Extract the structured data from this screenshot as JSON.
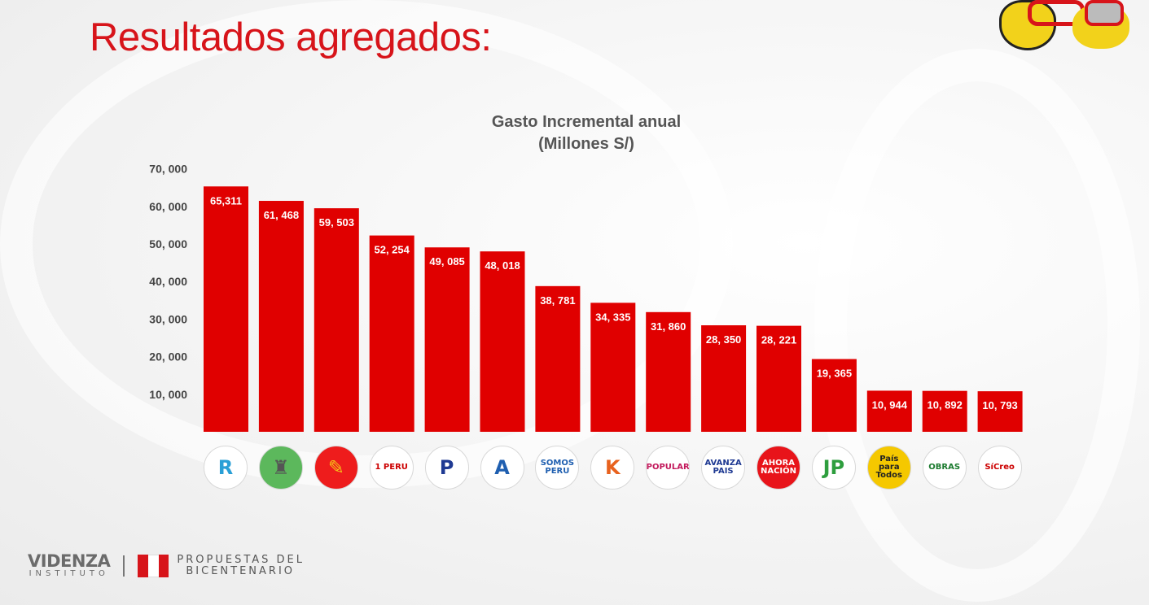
{
  "slide": {
    "title": "Resultados agregados:"
  },
  "chart_data": {
    "type": "bar",
    "title": "Gasto Incremental anual",
    "subtitle": "(Millones S/)",
    "categories": [
      "Renovación Popular",
      "Partido (escoba)",
      "Partido (lápiz)",
      "Perú Primero",
      "Podemos",
      "Alianza para el Progreso",
      "Somos Perú",
      "Fuerza Popular",
      "Cooperación Popular",
      "Avanza País",
      "Ahora Nación",
      "Juntos por el Perú",
      "País para Todos",
      "Obras",
      "Sí Creo"
    ],
    "values": [
      65311,
      61468,
      59503,
      52254,
      49085,
      48018,
      38781,
      34335,
      31860,
      28350,
      28221,
      19365,
      10944,
      10892,
      10793
    ],
    "data_labels": [
      "65,311",
      "61, 468",
      "59, 503",
      "52, 254",
      "49, 085",
      "48, 018",
      "38, 781",
      "34, 335",
      "31, 860",
      "28, 350",
      "28, 221",
      "19, 365",
      "10, 944",
      "10, 892",
      "10, 793"
    ],
    "yticks": [
      10000,
      20000,
      30000,
      40000,
      50000,
      60000,
      70000
    ],
    "ytick_labels": [
      "10, 000",
      "20, 000",
      "30, 000",
      "40, 000",
      "50, 000",
      "60, 000",
      "70, 000"
    ],
    "ylim": [
      0,
      70000
    ],
    "grid": false,
    "bar_color": "#e00000"
  },
  "logos": [
    {
      "text": "R",
      "bg": "#fff",
      "color": "#2a9fd6"
    },
    {
      "text": "♜",
      "bg": "#5cb85c",
      "color": "#555"
    },
    {
      "text": "✎",
      "bg": "#ee1c1c",
      "color": "#f5c518"
    },
    {
      "text": "1 PERU",
      "bg": "#fff",
      "color": "#c00"
    },
    {
      "text": "P",
      "bg": "#fff",
      "color": "#1f3a93"
    },
    {
      "text": "A",
      "bg": "#fff",
      "color": "#1f5fb0"
    },
    {
      "text": "SOMOS PERU",
      "bg": "#fff",
      "color": "#1f5fb0"
    },
    {
      "text": "K",
      "bg": "#fff",
      "color": "#e8621e"
    },
    {
      "text": "POPULAR",
      "bg": "#fff",
      "color": "#c2185b"
    },
    {
      "text": "AVANZA PAIS",
      "bg": "#fff",
      "color": "#1f3a93"
    },
    {
      "text": "AHORA NACIÓN",
      "bg": "#e8141a",
      "color": "#fff"
    },
    {
      "text": "JP",
      "bg": "#fff",
      "color": "#2e9e3e"
    },
    {
      "text": "País para Todos",
      "bg": "#f5c800",
      "color": "#222"
    },
    {
      "text": "OBRAS",
      "bg": "#fff",
      "color": "#1b7a2e"
    },
    {
      "text": "SíCreo",
      "bg": "#fff",
      "color": "#c00"
    }
  ],
  "footer": {
    "videnza": "VIDENZA",
    "instituto": "INSTITUTO",
    "propuestas_line1": "PROPUESTAS DEL",
    "propuestas_line2": "BICENTENARIO"
  }
}
